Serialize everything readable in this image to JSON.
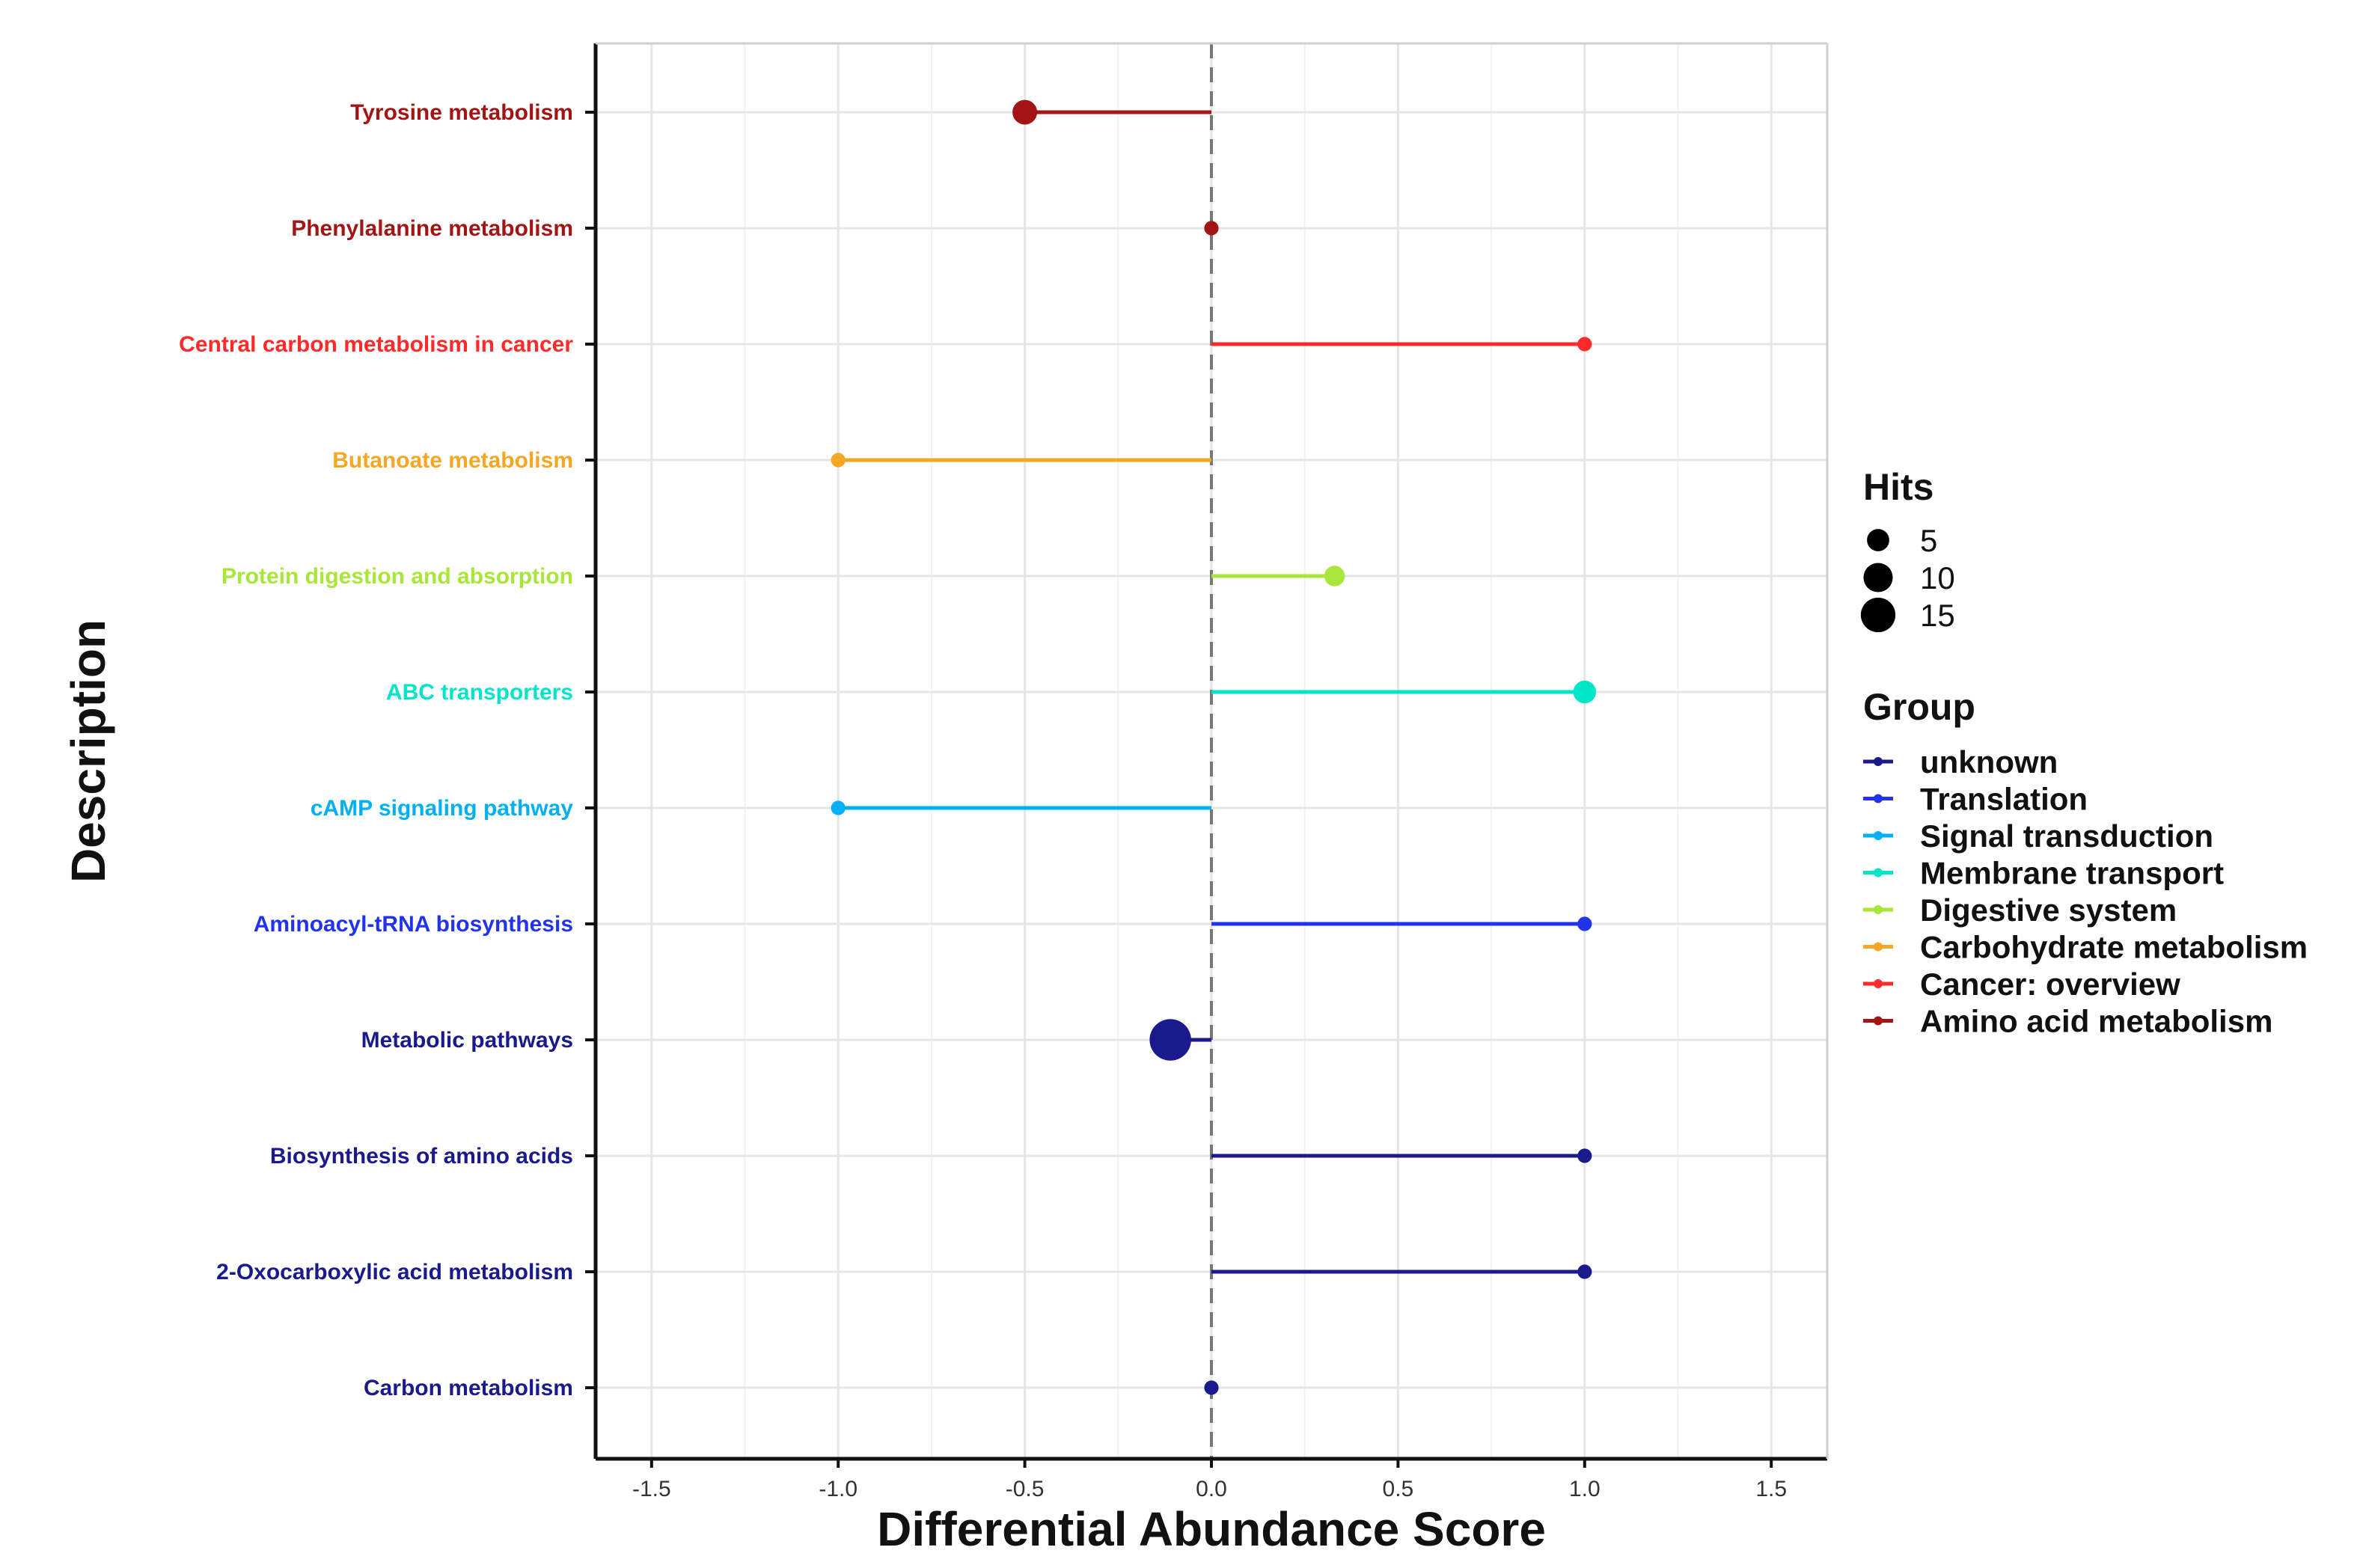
{
  "chart_data": {
    "type": "lollipop",
    "xlabel": "Differential Abundance Score",
    "ylabel": "Description",
    "xlim": [
      -1.65,
      1.65
    ],
    "x_ticks": [
      -1.5,
      -1.0,
      -0.5,
      0.0,
      0.5,
      1.0,
      1.5
    ],
    "x_tick_labels": [
      "-1.5",
      "-1.0",
      "-0.5",
      "0.0",
      "0.5",
      "1.0",
      "1.5"
    ],
    "grid": true,
    "reference_line_x": 0,
    "categories": [
      "Tyrosine metabolism",
      "Phenylalanine metabolism",
      "Central carbon metabolism in cancer",
      "Butanoate metabolism",
      "Protein digestion and absorption",
      "ABC transporters",
      "cAMP signaling pathway",
      "Aminoacyl-tRNA biosynthesis",
      "Metabolic pathways",
      "Biosynthesis of amino acids",
      "2-Oxocarboxylic acid metabolism",
      "Carbon metabolism"
    ],
    "points": [
      {
        "label": "Tyrosine metabolism",
        "value": -0.5,
        "hits": 5,
        "group": "Amino acid metabolism"
      },
      {
        "label": "Phenylalanine metabolism",
        "value": 0.0,
        "hits": 1,
        "group": "Amino acid metabolism"
      },
      {
        "label": "Central carbon metabolism in cancer",
        "value": 1.0,
        "hits": 1,
        "group": "Cancer: overview"
      },
      {
        "label": "Butanoate metabolism",
        "value": -1.0,
        "hits": 1,
        "group": "Carbohydrate metabolism"
      },
      {
        "label": "Protein digestion and absorption",
        "value": 0.33,
        "hits": 3,
        "group": "Digestive system"
      },
      {
        "label": "ABC transporters",
        "value": 1.0,
        "hits": 4,
        "group": "Membrane transport"
      },
      {
        "label": "cAMP signaling pathway",
        "value": -1.0,
        "hits": 1,
        "group": "Signal transduction"
      },
      {
        "label": "Aminoacyl-tRNA biosynthesis",
        "value": 1.0,
        "hits": 1,
        "group": "Translation"
      },
      {
        "label": "Metabolic pathways",
        "value": -0.11,
        "hits": 18,
        "group": "unknown"
      },
      {
        "label": "Biosynthesis of amino acids",
        "value": 1.0,
        "hits": 1,
        "group": "unknown"
      },
      {
        "label": "2-Oxocarboxylic acid metabolism",
        "value": 1.0,
        "hits": 1,
        "group": "unknown"
      },
      {
        "label": "Carbon metabolism",
        "value": 0.0,
        "hits": 1,
        "group": "unknown"
      }
    ],
    "legend_hits": {
      "title": "Hits",
      "entries": [
        {
          "label": "5",
          "hits": 5
        },
        {
          "label": "10",
          "hits": 10
        },
        {
          "label": "15",
          "hits": 15
        }
      ]
    },
    "legend_group": {
      "title": "Group",
      "entries": [
        {
          "label": "unknown",
          "color": "#1a1a8c"
        },
        {
          "label": "Translation",
          "color": "#2233ee"
        },
        {
          "label": "Signal transduction",
          "color": "#00b0f0"
        },
        {
          "label": "Membrane transport",
          "color": "#00e5c8"
        },
        {
          "label": "Digestive system",
          "color": "#a8e63a"
        },
        {
          "label": "Carbohydrate metabolism",
          "color": "#f5a623"
        },
        {
          "label": "Cancer: overview",
          "color": "#ff2a2a"
        },
        {
          "label": "Amino acid metabolism",
          "color": "#a31515"
        }
      ]
    },
    "legend_placement": "right"
  }
}
